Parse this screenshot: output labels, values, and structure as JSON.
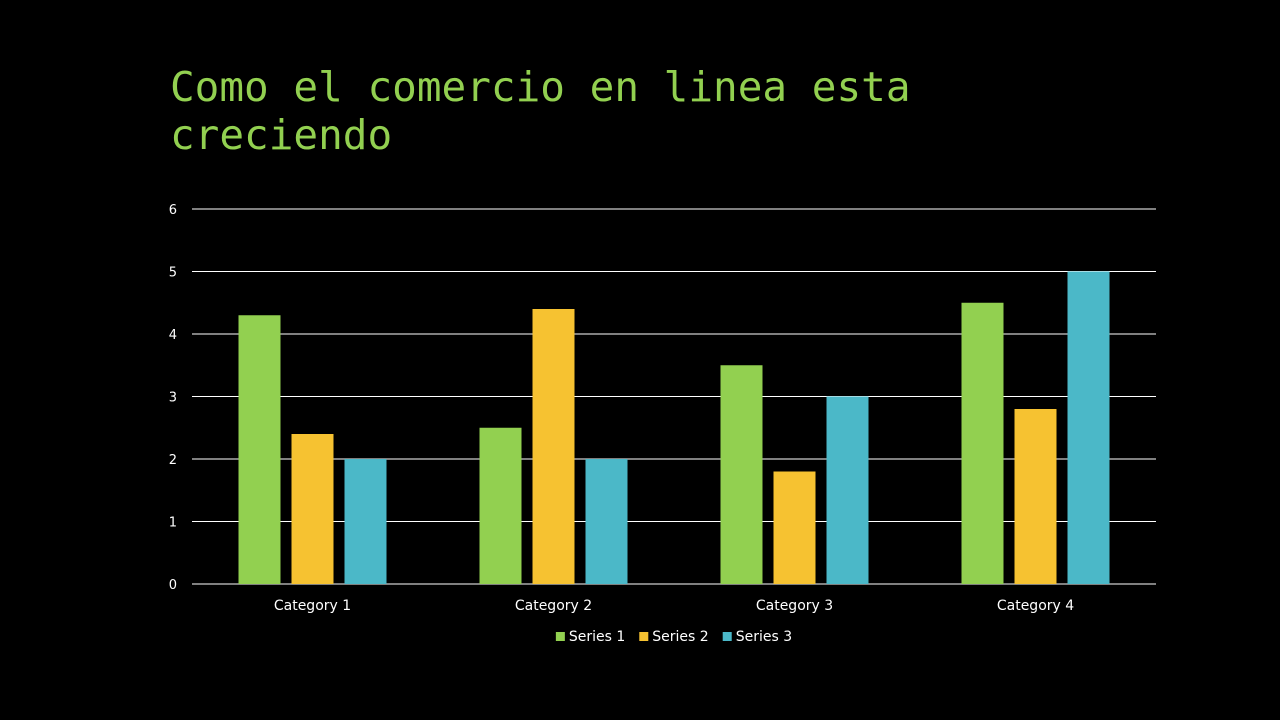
{
  "slide": {
    "title": "Como el comercio en linea esta creciendo",
    "title_color": "#92D050",
    "background": "#000000",
    "text_color": "#FFFFFF",
    "grid_color": "#FFFFFF"
  },
  "chart_data": {
    "type": "bar",
    "title": "",
    "xlabel": "",
    "ylabel": "",
    "categories": [
      "Category 1",
      "Category 2",
      "Category 3",
      "Category 4"
    ],
    "series": [
      {
        "name": "Series 1",
        "values": [
          4.3,
          2.5,
          3.5,
          4.5
        ],
        "color": "#92D050"
      },
      {
        "name": "Series 2",
        "values": [
          2.4,
          4.4,
          1.8,
          2.8
        ],
        "color": "#F6C231"
      },
      {
        "name": "Series 3",
        "values": [
          2,
          2,
          3,
          5
        ],
        "color": "#4BB8C8"
      }
    ],
    "ylim": [
      0,
      6
    ],
    "yticks": [
      0,
      1,
      2,
      3,
      4,
      5,
      6
    ],
    "grid": true,
    "legend_position": "bottom"
  }
}
